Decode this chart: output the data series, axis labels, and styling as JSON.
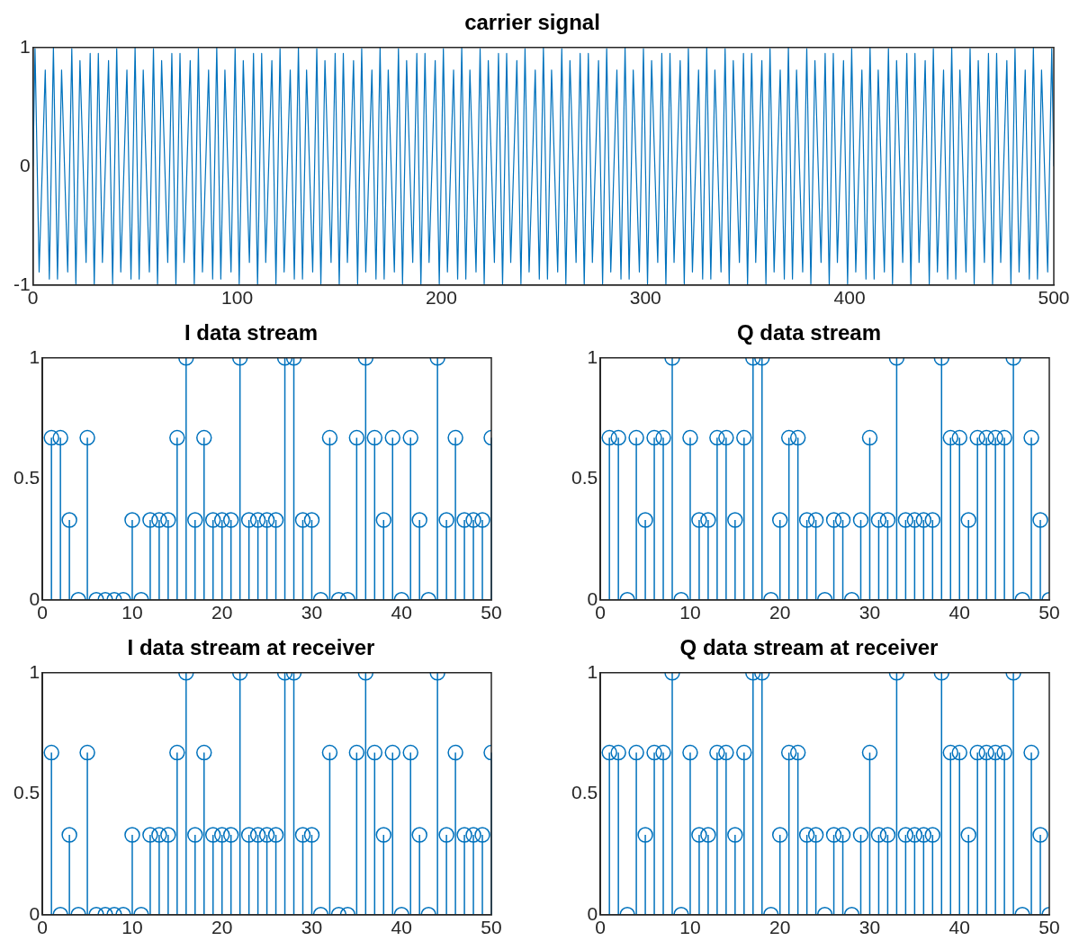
{
  "chart_data": [
    {
      "type": "line",
      "title": "carrier signal",
      "color": "#0072bd",
      "xlim": [
        0,
        500
      ],
      "xticks": [
        0,
        100,
        200,
        300,
        400,
        500
      ],
      "ylim": [
        -1,
        1
      ],
      "yticks": [
        -1,
        0,
        1
      ],
      "x": [
        0,
        1,
        3,
        6,
        8,
        10,
        12,
        14,
        17,
        19,
        21,
        23,
        26,
        28,
        30,
        32,
        34,
        37,
        39,
        41,
        43,
        46,
        48,
        50,
        52,
        54,
        57,
        59,
        61,
        63,
        66,
        68,
        70,
        72,
        74,
        77,
        79,
        81,
        83,
        86,
        88,
        90,
        92,
        94,
        97,
        99,
        101,
        103,
        106,
        108,
        110,
        112,
        114,
        117,
        119,
        121,
        123,
        126,
        128,
        130,
        132,
        134,
        137,
        139,
        141,
        143,
        146,
        148,
        150,
        152,
        154,
        157,
        159,
        161,
        163,
        166,
        168,
        170,
        172,
        174,
        177,
        179,
        181,
        183,
        186,
        188,
        190,
        192,
        194,
        197,
        199,
        201,
        203,
        206,
        208,
        210,
        212,
        214,
        217,
        219,
        221,
        223,
        226,
        228,
        230,
        232,
        234,
        237,
        239,
        241,
        243,
        246,
        248,
        250,
        252,
        254,
        257,
        259,
        261,
        263,
        266,
        268,
        270,
        272,
        274,
        277,
        279,
        281,
        283,
        286,
        288,
        290,
        292,
        294,
        297,
        299,
        301,
        303,
        306,
        308,
        310,
        312,
        314,
        317,
        319,
        321,
        323,
        326,
        328,
        330,
        332,
        334,
        337,
        339,
        341,
        343,
        346,
        348,
        350,
        352,
        354,
        357,
        359,
        361,
        363,
        366,
        368,
        370,
        372,
        374,
        377,
        379,
        381,
        383,
        386,
        388,
        390,
        392,
        394,
        397,
        399,
        401,
        403,
        406,
        408,
        410,
        412,
        414,
        417,
        419,
        421,
        423,
        426,
        428,
        430,
        432,
        434,
        437,
        439,
        441,
        443,
        446,
        448,
        450,
        452,
        454,
        457,
        459,
        461,
        463,
        466,
        468,
        470,
        472,
        474,
        477,
        479,
        481,
        483,
        486,
        488,
        490,
        492,
        494,
        497,
        499,
        500
      ],
      "values": [
        0,
        0.99,
        -0.89,
        0.81,
        -0.95,
        1,
        -0.95,
        0.81,
        -0.89,
        0.99,
        -0.99,
        0.89,
        -0.81,
        0.95,
        -1,
        0.95,
        -0.81,
        0.89,
        -0.99,
        0.99,
        -0.89,
        0.81,
        -0.95,
        1,
        -0.95,
        0.81,
        -0.89,
        0.99,
        -0.99,
        0.89,
        -0.81,
        0.95,
        -1,
        0.95,
        -0.81,
        0.89,
        -0.99,
        0.99,
        -0.89,
        0.81,
        -0.95,
        1,
        -0.95,
        0.81,
        -0.89,
        0.99,
        -0.99,
        0.89,
        -0.81,
        0.95,
        -1,
        0.95,
        -0.81,
        0.89,
        -0.99,
        0.99,
        -0.89,
        0.81,
        -0.95,
        1,
        -0.95,
        0.81,
        -0.89,
        0.99,
        -0.99,
        0.89,
        -0.81,
        0.95,
        -1,
        0.95,
        -0.81,
        0.89,
        -0.99,
        0.99,
        -0.89,
        0.81,
        -0.95,
        1,
        -0.95,
        0.81,
        -0.89,
        0.99,
        -0.99,
        0.89,
        -0.81,
        0.95,
        -1,
        0.95,
        -0.81,
        0.89,
        -0.99,
        0.99,
        -0.89,
        0.81,
        -0.95,
        1,
        -0.95,
        0.81,
        -0.89,
        0.99,
        -0.99,
        0.89,
        -0.81,
        0.95,
        -1,
        0.95,
        -0.81,
        0.89,
        -0.99,
        0.99,
        -0.89,
        0.81,
        -0.95,
        1,
        -0.95,
        0.81,
        -0.89,
        0.99,
        -0.99,
        0.89,
        -0.81,
        0.95,
        -1,
        0.95,
        -0.81,
        0.89,
        -0.99,
        0.99,
        -0.89,
        0.81,
        -0.95,
        1,
        -0.95,
        0.81,
        -0.89,
        0.99,
        -0.99,
        0.89,
        -0.81,
        0.95,
        -1,
        0.95,
        -0.81,
        0.89,
        -0.99,
        0.99,
        -0.89,
        0.81,
        -0.95,
        1,
        -0.95,
        0.81,
        -0.89,
        0.99,
        -0.99,
        0.89,
        -0.81,
        0.95,
        -1,
        0.95,
        -0.81,
        0.89,
        -0.99,
        0.99,
        -0.89,
        0.81,
        -0.95,
        1,
        -0.95,
        0.81,
        -0.89,
        0.99,
        -0.99,
        0.89,
        -0.81,
        0.95,
        -1,
        0.95,
        -0.81,
        0.89,
        -0.99,
        0.99,
        -0.89,
        0.81,
        -0.95,
        1,
        -0.95,
        0.81,
        -0.89,
        0.99,
        -0.99,
        0.89,
        -0.81,
        0.95,
        -1,
        0.95,
        -0.81,
        0.89,
        -0.99,
        0.99,
        -0.89,
        0.81,
        -0.95,
        1,
        -0.95,
        0.81,
        -0.89,
        0.99,
        -0.99,
        0.89,
        -0.81,
        0.95,
        -1,
        0.95,
        -0.81,
        0.89,
        -0.99,
        0.99,
        -0.89,
        0.81,
        -0.95,
        1,
        -0.95,
        0.81,
        -0.89,
        0.99,
        0
      ]
    },
    {
      "type": "lollipop",
      "title": "I data stream",
      "color": "#0072bd",
      "marker": "circle",
      "xlim": [
        0,
        50
      ],
      "xticks": [
        0,
        10,
        20,
        30,
        40,
        50
      ],
      "ylim": [
        0,
        1
      ],
      "yticks": [
        0,
        0.5,
        1
      ],
      "x": [
        1,
        2,
        3,
        4,
        5,
        6,
        7,
        8,
        9,
        10,
        11,
        12,
        13,
        14,
        15,
        16,
        17,
        18,
        19,
        20,
        21,
        22,
        23,
        24,
        25,
        26,
        27,
        28,
        29,
        30,
        31,
        32,
        33,
        34,
        35,
        36,
        37,
        38,
        39,
        40,
        41,
        42,
        43,
        44,
        45,
        46,
        47,
        48,
        49,
        50
      ],
      "values": [
        0.67,
        0.67,
        0.33,
        0,
        0.67,
        0,
        0,
        0,
        0,
        0.33,
        0,
        0.33,
        0.33,
        0.33,
        0.67,
        1,
        0.33,
        0.67,
        0.33,
        0.33,
        0.33,
        1,
        0.33,
        0.33,
        0.33,
        0.33,
        1,
        1,
        0.33,
        0.33,
        0,
        0.67,
        0,
        0,
        0.67,
        1,
        0.67,
        0.33,
        0.67,
        0,
        0.67,
        0.33,
        0,
        1,
        0.33,
        0.67,
        0.33,
        0.33,
        0.33,
        0.67
      ]
    },
    {
      "type": "lollipop",
      "title": "Q data stream",
      "color": "#0072bd",
      "marker": "circle",
      "xlim": [
        0,
        50
      ],
      "xticks": [
        0,
        10,
        20,
        30,
        40,
        50
      ],
      "ylim": [
        0,
        1
      ],
      "yticks": [
        0,
        0.5,
        1
      ],
      "x": [
        1,
        2,
        3,
        4,
        5,
        6,
        7,
        8,
        9,
        10,
        11,
        12,
        13,
        14,
        15,
        16,
        17,
        18,
        19,
        20,
        21,
        22,
        23,
        24,
        25,
        26,
        27,
        28,
        29,
        30,
        31,
        32,
        33,
        34,
        35,
        36,
        37,
        38,
        39,
        40,
        41,
        42,
        43,
        44,
        45,
        46,
        47,
        48,
        49,
        50
      ],
      "values": [
        0.67,
        0.67,
        0,
        0.67,
        0.33,
        0.67,
        0.67,
        1,
        0,
        0.67,
        0.33,
        0.33,
        0.67,
        0.67,
        0.33,
        0.67,
        1,
        1,
        0,
        0.33,
        0.67,
        0.67,
        0.33,
        0.33,
        0,
        0.33,
        0.33,
        0,
        0.33,
        0.67,
        0.33,
        0.33,
        1,
        0.33,
        0.33,
        0.33,
        0.33,
        1,
        0.67,
        0.67,
        0.33,
        0.67,
        0.67,
        0.67,
        0.67,
        1,
        0,
        0.67,
        0.33,
        0
      ]
    },
    {
      "type": "lollipop",
      "title": "I data stream at receiver",
      "color": "#0072bd",
      "marker": "circle",
      "xlim": [
        0,
        50
      ],
      "xticks": [
        0,
        10,
        20,
        30,
        40,
        50
      ],
      "ylim": [
        0,
        1
      ],
      "yticks": [
        0,
        0.5,
        1
      ],
      "x": [
        1,
        2,
        3,
        4,
        5,
        6,
        7,
        8,
        9,
        10,
        11,
        12,
        13,
        14,
        15,
        16,
        17,
        18,
        19,
        20,
        21,
        22,
        23,
        24,
        25,
        26,
        27,
        28,
        29,
        30,
        31,
        32,
        33,
        34,
        35,
        36,
        37,
        38,
        39,
        40,
        41,
        42,
        43,
        44,
        45,
        46,
        47,
        48,
        49,
        50
      ],
      "values": [
        0.67,
        0,
        0.33,
        0,
        0.67,
        0,
        0,
        0,
        0,
        0.33,
        0,
        0.33,
        0.33,
        0.33,
        0.67,
        1,
        0.33,
        0.67,
        0.33,
        0.33,
        0.33,
        1,
        0.33,
        0.33,
        0.33,
        0.33,
        1,
        1,
        0.33,
        0.33,
        0,
        0.67,
        0,
        0,
        0.67,
        1,
        0.67,
        0.33,
        0.67,
        0,
        0.67,
        0.33,
        0,
        1,
        0.33,
        0.67,
        0.33,
        0.33,
        0.33,
        0.67
      ]
    },
    {
      "type": "lollipop",
      "title": "Q data stream at receiver",
      "color": "#0072bd",
      "marker": "circle",
      "xlim": [
        0,
        50
      ],
      "xticks": [
        0,
        10,
        20,
        30,
        40,
        50
      ],
      "ylim": [
        0,
        1
      ],
      "yticks": [
        0,
        0.5,
        1
      ],
      "x": [
        1,
        2,
        3,
        4,
        5,
        6,
        7,
        8,
        9,
        10,
        11,
        12,
        13,
        14,
        15,
        16,
        17,
        18,
        19,
        20,
        21,
        22,
        23,
        24,
        25,
        26,
        27,
        28,
        29,
        30,
        31,
        32,
        33,
        34,
        35,
        36,
        37,
        38,
        39,
        40,
        41,
        42,
        43,
        44,
        45,
        46,
        47,
        48,
        49,
        50
      ],
      "values": [
        0.67,
        0.67,
        0,
        0.67,
        0.33,
        0.67,
        0.67,
        1,
        0,
        0.67,
        0.33,
        0.33,
        0.67,
        0.67,
        0.33,
        0.67,
        1,
        1,
        0,
        0.33,
        0.67,
        0.67,
        0.33,
        0.33,
        0,
        0.33,
        0.33,
        0,
        0.33,
        0.67,
        0.33,
        0.33,
        1,
        0.33,
        0.33,
        0.33,
        0.33,
        1,
        0.67,
        0.67,
        0.33,
        0.67,
        0.67,
        0.67,
        0.67,
        1,
        0,
        0.67,
        0.33,
        0
      ]
    }
  ]
}
